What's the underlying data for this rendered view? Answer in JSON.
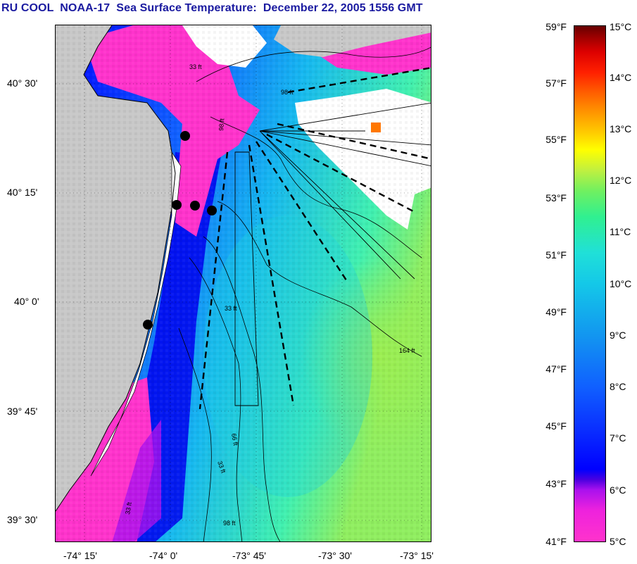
{
  "title": "RU COOL  NOAA-17  Sea Surface Temperature:  December 22, 2005 1556 GMT",
  "map": {
    "latitude_labels": [
      "40° 30'",
      "40° 15'",
      "40° 0'",
      "39° 45'",
      "39° 30'"
    ],
    "longitude_labels": [
      "-74° 15'",
      "-74° 0'",
      "-73° 45'",
      "-73° 30'",
      "-73° 15'"
    ],
    "isobath_labels": [
      "33 ft",
      "98 ft",
      "98 ft",
      "164 ft",
      "33 ft",
      "66 ft",
      "33 ft",
      "98 ft",
      "33 ft"
    ],
    "stations": 5,
    "colors": {
      "land": "#c8c8c8",
      "no_data": "#ffffff",
      "cold": "#ff33cc",
      "warm": "#88ee55"
    }
  },
  "colorbar": {
    "fahrenheit_labels": [
      "59°F",
      "57°F",
      "55°F",
      "53°F",
      "51°F",
      "49°F",
      "47°F",
      "45°F",
      "43°F",
      "41°F"
    ],
    "celsius_labels": [
      "15°C",
      "14°C",
      "13°C",
      "12°C",
      "11°C",
      "10°C",
      "9°C",
      "8°C",
      "7°C",
      "6°C",
      "5°C"
    ]
  }
}
